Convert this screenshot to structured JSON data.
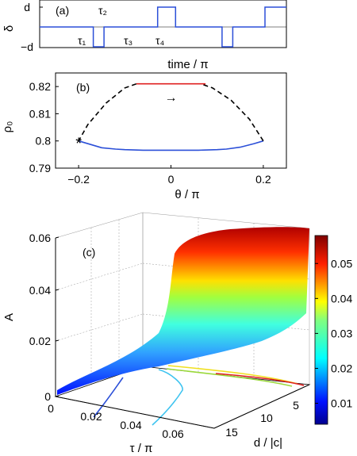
{
  "chart_data": [
    {
      "panel": "(a)",
      "type": "line",
      "xlabel": "time / π",
      "ylabel": "δ",
      "y_ticks": [
        "d",
        "−d"
      ],
      "segment_labels": [
        "τ₁",
        "τ₂",
        "τ₃",
        "τ₄"
      ],
      "series": [
        {
          "color": "#2b4fd8",
          "x": [
            0,
            1.5,
            1.5,
            1.8,
            1.8,
            3.3,
            3.3,
            3.8,
            3.8,
            5.1,
            5.1,
            5.4,
            5.4,
            6.3,
            6.3,
            6.9
          ],
          "y": [
            0,
            0,
            -1,
            -1,
            0,
            0,
            1,
            1,
            0,
            0,
            -1,
            -1,
            0,
            0,
            1,
            1
          ]
        }
      ]
    },
    {
      "panel": "(b)",
      "type": "line",
      "xlabel": "θ / π",
      "ylabel": "ρ₀",
      "xlim": [
        -0.25,
        0.25
      ],
      "ylim": [
        0.79,
        0.825
      ],
      "x_ticks": [
        "−0.2",
        "0",
        "0.2"
      ],
      "y_ticks": [
        "0.79",
        "0.8",
        "0.81",
        "0.82"
      ],
      "series": [
        {
          "color": "#2b4fd8",
          "style": "solid",
          "x": [
            -0.2,
            -0.15,
            -0.12,
            -0.1,
            -0.06,
            0,
            0.06,
            0.1,
            0.12,
            0.15,
            0.18,
            0.2
          ],
          "y": [
            0.8,
            0.7975,
            0.797,
            0.7968,
            0.7966,
            0.7966,
            0.7966,
            0.7968,
            0.797,
            0.7977,
            0.799,
            0.8
          ]
        },
        {
          "color": "#000000",
          "style": "dashed",
          "x": [
            0.2,
            0.17,
            0.13,
            0.09,
            0.065
          ],
          "y": [
            0.8,
            0.808,
            0.815,
            0.8195,
            0.821
          ]
        },
        {
          "color": "#e02020",
          "style": "solid",
          "x": [
            -0.075,
            -0.04,
            0,
            0.04,
            0.075
          ],
          "y": [
            0.821,
            0.821,
            0.821,
            0.821,
            0.821
          ]
        },
        {
          "color": "#000000",
          "style": "dashed",
          "x": [
            -0.075,
            -0.1,
            -0.14,
            -0.18,
            -0.2
          ],
          "y": [
            0.821,
            0.8195,
            0.814,
            0.806,
            0.8
          ]
        }
      ],
      "markers": [
        {
          "x": -0.2,
          "y": 0.8,
          "symbol": "*",
          "color": "#e02020"
        }
      ],
      "annotations": [
        {
          "text": "→",
          "x": 0,
          "y": 0.816,
          "color": "#e02020"
        }
      ]
    },
    {
      "panel": "(c)",
      "type": "surface3d",
      "zlabel": "A",
      "xlabel": "τ / π",
      "ylabel": "d / |c|",
      "z_ticks": [
        "0",
        "0.02",
        "0.04",
        "0.06"
      ],
      "x_ticks": [
        "0",
        "0.02",
        "0.04",
        "0.06"
      ],
      "y_ticks": [
        "5",
        "10",
        "15"
      ],
      "colorbar": {
        "min": 0.004,
        "max": 0.058,
        "ticks": [
          "0.01",
          "0.02",
          "0.03",
          "0.04",
          "0.05"
        ]
      },
      "contour_colors": [
        "#2b4fd8",
        "#3fc4f0",
        "#9ad83a",
        "#f0e020",
        "#e02020"
      ]
    }
  ]
}
